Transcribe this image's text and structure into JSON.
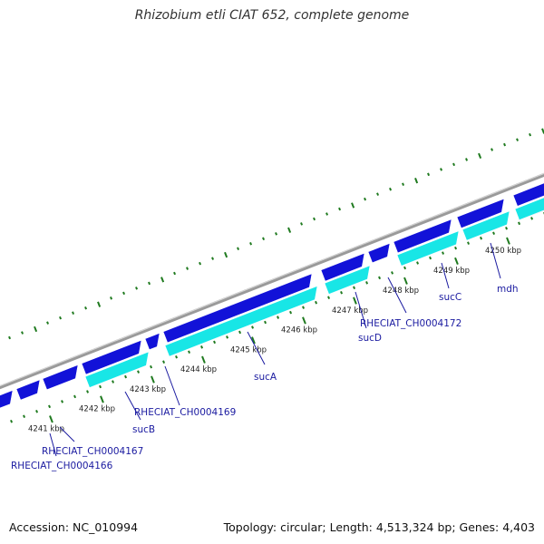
{
  "title": "Rhizobium etli CIAT 652, complete genome",
  "footer": {
    "accession": "Accession: NC_010994",
    "summary": "Topology: circular; Length: 4,513,324 bp; Genes: 4,403"
  },
  "colors": {
    "backbone": "#9a9a9a",
    "forward_gene": "#1212d8",
    "reverse_gene": "#18e6e6",
    "other_gene": "#c8c8c8",
    "tick": "#1f7a1f",
    "label": "#1a1aa0"
  },
  "kbp_ticks": [
    "4241 kbp",
    "4242 kbp",
    "4243 kbp",
    "4244 kbp",
    "4245 kbp",
    "4246 kbp",
    "4247 kbp",
    "4248 kbp",
    "4249 kbp",
    "4250 kbp"
  ],
  "gene_labels": [
    "RHECIAT_CH0004166",
    "RHECIAT_CH0004167",
    "sucB",
    "RHECIAT_CH0004169",
    "sucA",
    "sucD",
    "RHECIAT_CH0004172",
    "sucC",
    "mdh"
  ]
}
